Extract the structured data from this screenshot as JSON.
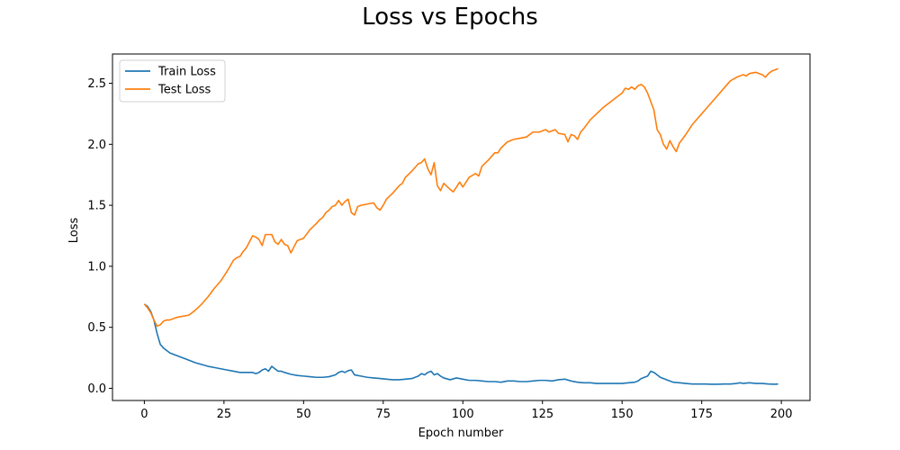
{
  "chart_data": {
    "type": "line",
    "title": "Loss vs Epochs",
    "xlabel": "Epoch number",
    "ylabel": "Loss",
    "xlim": [
      -10,
      209
    ],
    "ylim": [
      -0.1,
      2.74
    ],
    "xticks": [
      0,
      25,
      50,
      75,
      100,
      125,
      150,
      175,
      200
    ],
    "yticks": [
      0.0,
      0.5,
      1.0,
      1.5,
      2.0,
      2.5
    ],
    "grid": false,
    "legend_position": "top-left",
    "series": [
      {
        "name": "Train Loss",
        "color": "#1f77b4",
        "x": [
          0,
          1,
          2,
          3,
          4,
          5,
          6,
          7,
          8,
          10,
          12,
          14,
          16,
          18,
          20,
          22,
          24,
          26,
          28,
          30,
          32,
          34,
          35,
          36,
          37,
          38,
          39,
          40,
          41,
          42,
          43,
          44,
          46,
          48,
          50,
          52,
          54,
          56,
          58,
          60,
          61,
          62,
          63,
          64,
          65,
          66,
          68,
          70,
          72,
          74,
          76,
          78,
          80,
          82,
          84,
          86,
          87,
          88,
          89,
          90,
          91,
          92,
          93,
          94,
          96,
          98,
          100,
          102,
          104,
          106,
          108,
          110,
          112,
          114,
          116,
          118,
          120,
          122,
          124,
          126,
          128,
          130,
          132,
          134,
          136,
          138,
          140,
          142,
          144,
          146,
          148,
          150,
          152,
          154,
          155,
          156,
          157,
          158,
          159,
          160,
          161,
          162,
          163,
          164,
          166,
          168,
          170,
          172,
          174,
          176,
          178,
          180,
          182,
          184,
          186,
          187,
          188,
          190,
          192,
          194,
          196,
          198,
          199
        ],
        "values": [
          0.69,
          0.67,
          0.63,
          0.56,
          0.45,
          0.36,
          0.33,
          0.31,
          0.29,
          0.27,
          0.25,
          0.23,
          0.21,
          0.195,
          0.18,
          0.17,
          0.16,
          0.15,
          0.14,
          0.13,
          0.13,
          0.13,
          0.12,
          0.13,
          0.15,
          0.16,
          0.14,
          0.18,
          0.16,
          0.14,
          0.14,
          0.13,
          0.115,
          0.105,
          0.1,
          0.095,
          0.09,
          0.09,
          0.095,
          0.11,
          0.13,
          0.14,
          0.13,
          0.145,
          0.15,
          0.11,
          0.1,
          0.09,
          0.085,
          0.08,
          0.075,
          0.07,
          0.07,
          0.075,
          0.08,
          0.1,
          0.12,
          0.11,
          0.13,
          0.14,
          0.11,
          0.12,
          0.1,
          0.085,
          0.07,
          0.085,
          0.075,
          0.065,
          0.065,
          0.06,
          0.055,
          0.055,
          0.05,
          0.06,
          0.06,
          0.055,
          0.055,
          0.06,
          0.065,
          0.065,
          0.06,
          0.07,
          0.075,
          0.06,
          0.05,
          0.045,
          0.045,
          0.04,
          0.04,
          0.04,
          0.04,
          0.04,
          0.045,
          0.05,
          0.06,
          0.08,
          0.09,
          0.1,
          0.14,
          0.13,
          0.11,
          0.09,
          0.08,
          0.07,
          0.05,
          0.045,
          0.04,
          0.035,
          0.035,
          0.035,
          0.033,
          0.033,
          0.035,
          0.035,
          0.04,
          0.045,
          0.04,
          0.045,
          0.04,
          0.04,
          0.035,
          0.033,
          0.035
        ]
      },
      {
        "name": "Test Loss",
        "color": "#ff7f0e",
        "x": [
          0,
          1,
          2,
          3,
          4,
          5,
          6,
          7,
          8,
          10,
          12,
          14,
          16,
          18,
          20,
          22,
          24,
          26,
          28,
          29,
          30,
          31,
          32,
          34,
          35,
          36,
          37,
          38,
          39,
          40,
          41,
          42,
          43,
          44,
          45,
          46,
          47,
          48,
          50,
          52,
          54,
          55,
          56,
          57,
          58,
          59,
          60,
          61,
          62,
          63,
          64,
          65,
          66,
          67,
          68,
          70,
          72,
          73,
          74,
          75,
          76,
          78,
          80,
          81,
          82,
          84,
          86,
          87,
          88,
          89,
          90,
          91,
          92,
          93,
          94,
          96,
          97,
          98,
          99,
          100,
          102,
          104,
          105,
          106,
          108,
          110,
          111,
          112,
          114,
          116,
          118,
          120,
          122,
          124,
          126,
          127,
          128,
          129,
          130,
          132,
          133,
          134,
          135,
          136,
          137,
          138,
          140,
          142,
          144,
          146,
          148,
          150,
          151,
          152,
          153,
          154,
          155,
          156,
          157,
          158,
          159,
          160,
          161,
          162,
          163,
          164,
          165,
          166,
          167,
          168,
          170,
          172,
          174,
          176,
          178,
          180,
          182,
          184,
          186,
          188,
          189,
          190,
          192,
          194,
          195,
          196,
          197,
          198,
          199
        ],
        "values": [
          0.69,
          0.66,
          0.62,
          0.56,
          0.51,
          0.52,
          0.55,
          0.56,
          0.56,
          0.58,
          0.59,
          0.6,
          0.64,
          0.69,
          0.75,
          0.82,
          0.88,
          0.96,
          1.05,
          1.07,
          1.08,
          1.12,
          1.15,
          1.25,
          1.24,
          1.22,
          1.17,
          1.26,
          1.26,
          1.26,
          1.2,
          1.18,
          1.22,
          1.18,
          1.17,
          1.11,
          1.16,
          1.21,
          1.23,
          1.3,
          1.35,
          1.38,
          1.4,
          1.44,
          1.46,
          1.49,
          1.5,
          1.54,
          1.5,
          1.53,
          1.55,
          1.44,
          1.42,
          1.49,
          1.5,
          1.51,
          1.52,
          1.48,
          1.46,
          1.5,
          1.55,
          1.6,
          1.66,
          1.68,
          1.73,
          1.78,
          1.84,
          1.85,
          1.88,
          1.8,
          1.75,
          1.85,
          1.66,
          1.62,
          1.68,
          1.63,
          1.61,
          1.65,
          1.69,
          1.65,
          1.73,
          1.76,
          1.74,
          1.82,
          1.87,
          1.93,
          1.93,
          1.97,
          2.02,
          2.04,
          2.05,
          2.06,
          2.1,
          2.1,
          2.12,
          2.1,
          2.11,
          2.12,
          2.09,
          2.08,
          2.02,
          2.08,
          2.07,
          2.04,
          2.1,
          2.13,
          2.2,
          2.25,
          2.3,
          2.34,
          2.38,
          2.42,
          2.46,
          2.45,
          2.47,
          2.45,
          2.48,
          2.49,
          2.47,
          2.42,
          2.35,
          2.28,
          2.12,
          2.08,
          2.0,
          1.96,
          2.03,
          1.98,
          1.94,
          2.01,
          2.08,
          2.16,
          2.22,
          2.28,
          2.34,
          2.4,
          2.46,
          2.52,
          2.55,
          2.57,
          2.56,
          2.58,
          2.59,
          2.57,
          2.55,
          2.58,
          2.6,
          2.61,
          2.62
        ]
      }
    ]
  }
}
